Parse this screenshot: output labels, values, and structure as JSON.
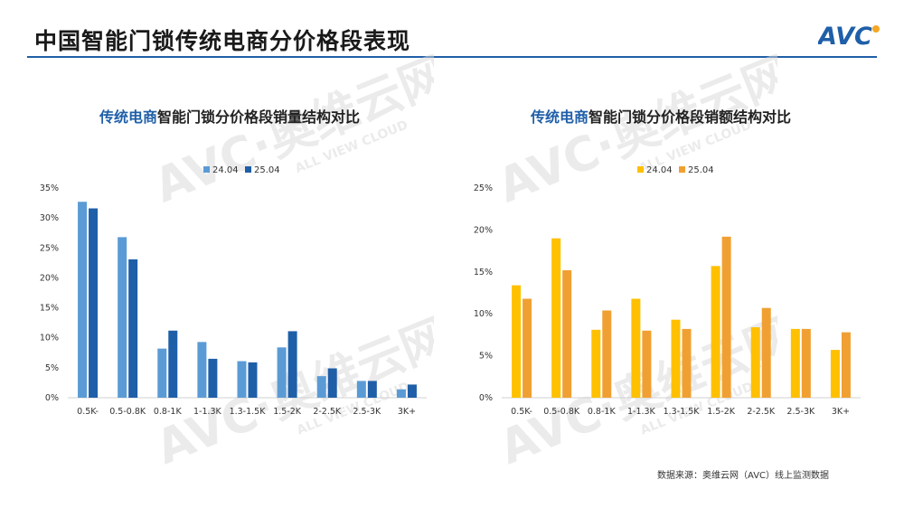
{
  "header": {
    "title": "中国智能门锁传统电商分价格段表现",
    "logo_text": "AVC"
  },
  "watermark": {
    "main": "AVC·奥维云网",
    "sub": "ALL VIEW CLOUD"
  },
  "chart_data": [
    {
      "type": "bar",
      "title_highlight": "传统电商",
      "title_rest": "智能门锁分价格段销量结构对比",
      "categories": [
        "0.5K-",
        "0.5-0.8K",
        "0.8-1K",
        "1-1.3K",
        "1.3-1.5K",
        "1.5-2K",
        "2-2.5K",
        "2.5-3K",
        "3K+"
      ],
      "series": [
        {
          "name": "24.04",
          "color": "#5b9bd5",
          "values": [
            32.7,
            26.8,
            8.2,
            9.3,
            6.1,
            8.4,
            3.6,
            2.8,
            1.4
          ]
        },
        {
          "name": "25.04",
          "color": "#1f5fa8",
          "values": [
            31.6,
            23.1,
            11.2,
            6.5,
            5.9,
            11.1,
            4.9,
            2.8,
            2.2
          ]
        }
      ],
      "yticks": [
        "0%",
        "5%",
        "10%",
        "15%",
        "20%",
        "25%",
        "30%",
        "35%"
      ],
      "ylim": [
        0,
        35
      ],
      "legend": "top-center",
      "grid": false
    },
    {
      "type": "bar",
      "title_highlight": "传统电商",
      "title_rest": "智能门锁分价格段销额结构对比",
      "categories": [
        "0.5K-",
        "0.5-0.8K",
        "0.8-1K",
        "1-1.3K",
        "1.3-1.5K",
        "1.5-2K",
        "2-2.5K",
        "2.5-3K",
        "3K+"
      ],
      "series": [
        {
          "name": "24.04",
          "color": "#ffc000",
          "values": [
            13.4,
            19.0,
            8.1,
            11.8,
            9.3,
            15.7,
            8.4,
            8.2,
            5.7
          ]
        },
        {
          "name": "25.04",
          "color": "#f0a032",
          "values": [
            11.8,
            15.2,
            10.4,
            8.0,
            8.2,
            19.2,
            10.7,
            8.2,
            7.8
          ]
        }
      ],
      "yticks": [
        "0%",
        "5%",
        "10%",
        "15%",
        "20%",
        "25%"
      ],
      "ylim": [
        0,
        25
      ],
      "legend": "top-center",
      "grid": false
    }
  ],
  "source": "数据来源：奥维云网（AVC）线上监测数据"
}
